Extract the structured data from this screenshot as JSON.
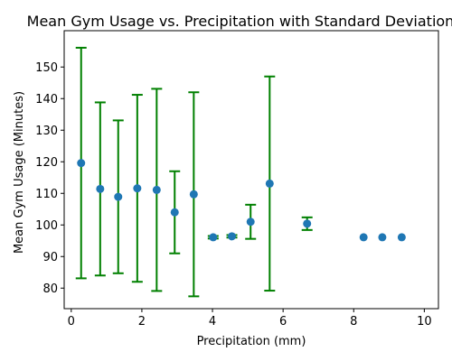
{
  "chart_data": {
    "type": "scatter",
    "title": "Mean Gym Usage vs. Precipitation with Standard Deviation",
    "xlabel": "Precipitation (mm)",
    "ylabel": "Mean Gym Usage (Minutes)",
    "xlim": [
      -0.2,
      10.4
    ],
    "ylim": [
      73.5,
      161.5
    ],
    "xticks": [
      0,
      2,
      4,
      6,
      8,
      10
    ],
    "yticks": [
      80,
      90,
      100,
      110,
      120,
      130,
      140,
      150
    ],
    "grid": false,
    "legend": "none",
    "point_color": "#1f77b4",
    "errorbar_color": "#008000",
    "points": [
      {
        "x": 0.28,
        "y": 119.6,
        "sd": 36.5
      },
      {
        "x": 0.82,
        "y": 111.4,
        "sd": 27.4
      },
      {
        "x": 1.33,
        "y": 108.9,
        "sd": 24.2
      },
      {
        "x": 1.87,
        "y": 111.6,
        "sd": 29.6
      },
      {
        "x": 2.42,
        "y": 111.1,
        "sd": 32.0
      },
      {
        "x": 2.93,
        "y": 104.0,
        "sd": 13.0
      },
      {
        "x": 3.47,
        "y": 109.7,
        "sd": 32.3
      },
      {
        "x": 4.02,
        "y": 96.1,
        "sd": 0.4
      },
      {
        "x": 4.55,
        "y": 96.4,
        "sd": 0.4
      },
      {
        "x": 5.08,
        "y": 101.0,
        "sd": 5.4
      },
      {
        "x": 5.62,
        "y": 113.1,
        "sd": 33.9
      },
      {
        "x": 6.68,
        "y": 100.4,
        "sd": 2.0
      },
      {
        "x": 8.28,
        "y": 96.1,
        "sd": 0
      },
      {
        "x": 8.81,
        "y": 96.1,
        "sd": 0
      },
      {
        "x": 9.36,
        "y": 96.1,
        "sd": 0
      }
    ]
  }
}
